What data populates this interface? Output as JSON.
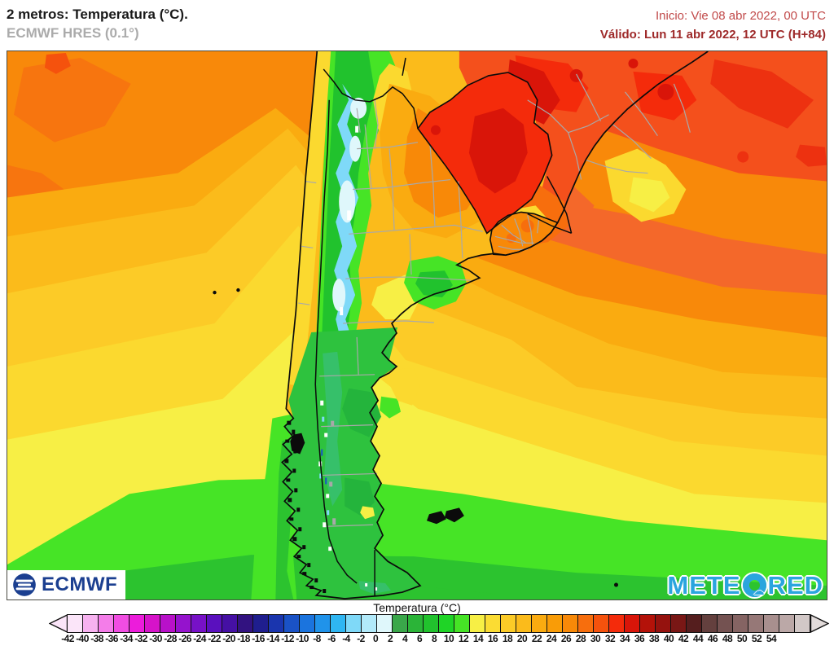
{
  "header": {
    "title": "2 metros: Temperatura (°C).",
    "subtitle": "ECMWF HRES (0.1°)",
    "init_label": "Inicio: Vie 08 abr 2022, 00 UTC",
    "valid_label": "Válido: Lun 11 abr 2022, 12 UTC (H+84)"
  },
  "map": {
    "region": "Southern South America",
    "logos": {
      "ecmwf": "ECMWF",
      "meteored_pre": "METE",
      "meteored_post": "RED"
    }
  },
  "colorbar": {
    "title": "Temperatura (°C)",
    "tick_labels": [
      -42,
      -40,
      -38,
      -36,
      -34,
      -32,
      -30,
      -28,
      -26,
      -24,
      -22,
      -20,
      -18,
      -16,
      -14,
      -12,
      -10,
      -8,
      -6,
      -4,
      -2,
      0,
      2,
      4,
      6,
      8,
      10,
      12,
      14,
      16,
      18,
      20,
      22,
      24,
      26,
      28,
      30,
      32,
      34,
      36,
      38,
      40,
      42,
      44,
      46,
      48,
      50,
      52,
      54
    ],
    "cell_colors": [
      "#FBE5F9",
      "#F7B2F0",
      "#F47DE9",
      "#F14DE2",
      "#EC1CDB",
      "#D613C9",
      "#B811C9",
      "#9513CD",
      "#7711C7",
      "#5A10BE",
      "#4510A4",
      "#321280",
      "#1F1E8E",
      "#1A35AE",
      "#1A52C6",
      "#1B74DE",
      "#2093EA",
      "#2FB6F2",
      "#7FD9F8",
      "#B2EAFA",
      "#DFF7FB",
      "#3AA74A",
      "#2BB438",
      "#21C22D",
      "#1FD426",
      "#46E426",
      "#F7EF45",
      "#FBDC33",
      "#FCCB27",
      "#FBBB1B",
      "#FAAB10",
      "#F99C07",
      "#F88908",
      "#F76E0D",
      "#F5520D",
      "#F42B0B",
      "#D91509",
      "#B41209",
      "#95120E",
      "#791715",
      "#551E1E",
      "#64403E",
      "#745251",
      "#856463",
      "#967877",
      "#A88F8E",
      "#BBA8A7",
      "#D2C8C7"
    ],
    "left_arrow_color": "#FBE5F9",
    "right_arrow_color": "#E2DBDA"
  }
}
